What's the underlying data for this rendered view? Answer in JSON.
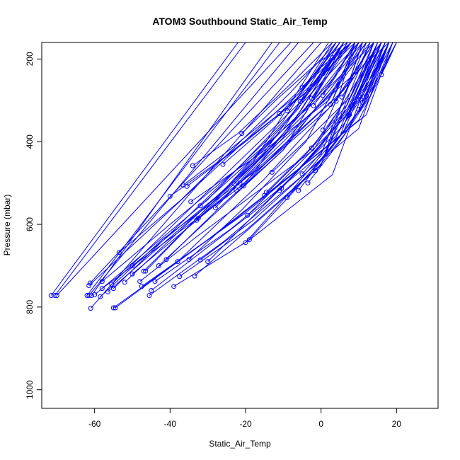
{
  "chart_data": {
    "type": "line",
    "title": "ATOM3 Southbound Static_Air_Temp",
    "xlabel": "Static_Air_Temp",
    "ylabel": "Pressure (mbar)",
    "xlim": [
      -74,
      31
    ],
    "ylim": [
      1045,
      160
    ],
    "y_reversed": true,
    "grid": false,
    "line_color": "#0000ff",
    "marker": "open-circle",
    "x_ticks": [
      -60,
      -40,
      -20,
      0,
      20
    ],
    "y_ticks": [
      200,
      400,
      600,
      800,
      1000
    ],
    "series": [
      {
        "x": [
          -71.5,
          -22
        ],
        "y": [
          772,
          160
        ]
      },
      {
        "x": [
          -70.5,
          -20
        ],
        "y": [
          772,
          160
        ]
      },
      {
        "x": [
          -70.0,
          -8
        ],
        "y": [
          772,
          160
        ]
      },
      {
        "x": [
          -62.0,
          -11
        ],
        "y": [
          772,
          160
        ]
      },
      {
        "x": [
          -61.5,
          -6
        ],
        "y": [
          772,
          160
        ]
      },
      {
        "x": [
          -60.8,
          -13
        ],
        "y": [
          772,
          160
        ]
      },
      {
        "x": [
          -61.0,
          0
        ],
        "y": [
          803,
          160
        ]
      },
      {
        "x": [
          -61.5,
          8
        ],
        "y": [
          748,
          160
        ]
      },
      {
        "x": [
          -61.2,
          -2
        ],
        "y": [
          742,
          160
        ]
      },
      {
        "x": [
          -58.5,
          -42,
          -15,
          2,
          16
        ],
        "y": [
          775,
          636,
          455,
          320,
          160
        ]
      },
      {
        "x": [
          -58.0,
          -40,
          -20,
          -3,
          14
        ],
        "y": [
          738,
          600,
          450,
          315,
          160
        ]
      },
      {
        "x": [
          -56.5,
          -14,
          18
        ],
        "y": [
          763,
          425,
          160
        ]
      },
      {
        "x": [
          -55.5,
          -5,
          8
        ],
        "y": [
          745,
          300,
          160
        ]
      },
      {
        "x": [
          -55.0,
          -12,
          10
        ],
        "y": [
          755,
          375,
          160
        ]
      },
      {
        "x": [
          -53.5,
          -37,
          -8,
          4
        ],
        "y": [
          668,
          540,
          280,
          160
        ]
      },
      {
        "x": [
          -55.0,
          -20,
          10,
          20
        ],
        "y": [
          802,
          572,
          348,
          160
        ]
      },
      {
        "x": [
          -54.5,
          -23,
          12,
          19
        ],
        "y": [
          802,
          590,
          335,
          160
        ]
      },
      {
        "x": [
          -47.0,
          -36,
          -15,
          6
        ],
        "y": [
          713,
          613,
          425,
          160
        ]
      },
      {
        "x": [
          -46.5,
          -35,
          -10,
          4
        ],
        "y": [
          713,
          605,
          370,
          160
        ]
      },
      {
        "x": [
          -48.0,
          -33,
          -2,
          16
        ],
        "y": [
          738,
          630,
          420,
          160
        ]
      },
      {
        "x": [
          -47.5,
          -30,
          5,
          14
        ],
        "y": [
          750,
          637,
          388,
          160
        ]
      },
      {
        "x": [
          -45.5,
          -26,
          10,
          18
        ],
        "y": [
          772,
          643,
          368,
          160
        ]
      },
      {
        "x": [
          -44.0,
          -24,
          0,
          12
        ],
        "y": [
          738,
          612,
          430,
          160
        ]
      },
      {
        "x": [
          -41.0,
          -27,
          -10,
          7
        ],
        "y": [
          685,
          560,
          420,
          160
        ]
      },
      {
        "x": [
          -39.0,
          -19,
          3,
          16
        ],
        "y": [
          750,
          638,
          480,
          160
        ]
      },
      {
        "x": [
          -37.5,
          -20,
          0,
          13
        ],
        "y": [
          726,
          615,
          455,
          160
        ]
      },
      {
        "x": [
          -35.0,
          -21,
          -4,
          10
        ],
        "y": [
          685,
          565,
          400,
          160
        ]
      },
      {
        "x": [
          -33.5,
          -20,
          0,
          11
        ],
        "y": [
          725,
          618,
          457,
          160
        ]
      },
      {
        "x": [
          -32.0,
          -18,
          1,
          14
        ],
        "y": [
          686,
          590,
          434,
          160
        ]
      },
      {
        "x": [
          -40.0,
          -26,
          -4,
          6
        ],
        "y": [
          532,
          440,
          282,
          160
        ]
      },
      {
        "x": [
          -36.5,
          -24,
          -6,
          5
        ],
        "y": [
          505,
          418,
          285,
          160
        ]
      },
      {
        "x": [
          -35.5,
          -20,
          -2,
          8
        ],
        "y": [
          508,
          400,
          265,
          160
        ]
      },
      {
        "x": [
          -34.0,
          -22,
          -8,
          3
        ],
        "y": [
          458,
          380,
          260,
          160
        ]
      },
      {
        "x": [
          -34.5,
          -16,
          2,
          11
        ],
        "y": [
          545,
          428,
          300,
          160
        ]
      },
      {
        "x": [
          -32.0,
          -18,
          -2,
          10
        ],
        "y": [
          555,
          440,
          300,
          160
        ]
      },
      {
        "x": [
          -32.5,
          -15,
          3,
          9
        ],
        "y": [
          585,
          450,
          300,
          160
        ]
      },
      {
        "x": [
          -33.0,
          -20,
          -4,
          6
        ],
        "y": [
          590,
          475,
          330,
          160
        ]
      },
      {
        "x": [
          -22.5,
          -8,
          6,
          14
        ],
        "y": [
          517,
          395,
          275,
          160
        ]
      },
      {
        "x": [
          -21.5,
          -10,
          4,
          13
        ],
        "y": [
          500,
          400,
          270,
          160
        ]
      },
      {
        "x": [
          -20.5,
          -8,
          4,
          12
        ],
        "y": [
          507,
          390,
          265,
          160
        ]
      },
      {
        "x": [
          -23.0,
          -12,
          2,
          11
        ],
        "y": [
          502,
          400,
          260,
          160
        ]
      },
      {
        "x": [
          -26.0,
          -14,
          0,
          9
        ],
        "y": [
          455,
          360,
          240,
          160
        ]
      },
      {
        "x": [
          -21.0,
          -12,
          -1,
          7
        ],
        "y": [
          380,
          300,
          210,
          160
        ]
      },
      {
        "x": [
          -20.0,
          -8,
          4,
          15
        ],
        "y": [
          644,
          520,
          390,
          160
        ]
      },
      {
        "x": [
          -19.0,
          -6,
          6,
          16
        ],
        "y": [
          637,
          508,
          375,
          160
        ]
      },
      {
        "x": [
          -19.5,
          -6,
          7,
          17
        ],
        "y": [
          578,
          455,
          335,
          160
        ]
      },
      {
        "x": [
          -15.0,
          -4,
          7,
          15
        ],
        "y": [
          530,
          430,
          320,
          160
        ]
      },
      {
        "x": [
          -14.5,
          -3,
          7,
          14
        ],
        "y": [
          522,
          418,
          310,
          160
        ]
      },
      {
        "x": [
          -13.0,
          -2,
          8,
          15
        ],
        "y": [
          474,
          380,
          290,
          160
        ]
      },
      {
        "x": [
          -11.0,
          0,
          9,
          16
        ],
        "y": [
          518,
          410,
          300,
          160
        ]
      },
      {
        "x": [
          -10.5,
          0,
          9,
          16
        ],
        "y": [
          513,
          405,
          295,
          160
        ]
      },
      {
        "x": [
          -9.0,
          2,
          11,
          17
        ],
        "y": [
          535,
          425,
          315,
          160
        ]
      },
      {
        "x": [
          -6.0,
          3,
          12,
          18
        ],
        "y": [
          518,
          410,
          300,
          160
        ]
      },
      {
        "x": [
          -3.5,
          5,
          13,
          19
        ],
        "y": [
          500,
          400,
          290,
          160
        ]
      },
      {
        "x": [
          -5.0,
          4,
          11,
          17
        ],
        "y": [
          478,
          385,
          290,
          160
        ]
      },
      {
        "x": [
          -1.5,
          6,
          13,
          20
        ],
        "y": [
          470,
          385,
          280,
          160
        ]
      },
      {
        "x": [
          -2.5,
          5,
          11
        ],
        "y": [
          415,
          320,
          160
        ]
      },
      {
        "x": [
          -11.0,
          -4,
          4
        ],
        "y": [
          332,
          265,
          160
        ]
      },
      {
        "x": [
          -9.0,
          -3,
          5
        ],
        "y": [
          325,
          255,
          160
        ]
      },
      {
        "x": [
          -5.5,
          0,
          6
        ],
        "y": [
          303,
          240,
          160
        ]
      },
      {
        "x": [
          -2.5,
          2,
          7
        ],
        "y": [
          295,
          230,
          160
        ]
      },
      {
        "x": [
          -2.0,
          3,
          9
        ],
        "y": [
          313,
          250,
          160
        ]
      },
      {
        "x": [
          -5.0,
          0,
          8
        ],
        "y": [
          268,
          220,
          160
        ]
      },
      {
        "x": [
          0.5,
          4,
          9
        ],
        "y": [
          288,
          240,
          160
        ]
      },
      {
        "x": [
          0.5,
          5,
          9
        ],
        "y": [
          372,
          280,
          160
        ]
      },
      {
        "x": [
          0.5,
          6
        ],
        "y": [
          235,
          160
        ]
      },
      {
        "x": [
          2.5,
          5,
          10
        ],
        "y": [
          310,
          260,
          160
        ]
      },
      {
        "x": [
          3.0,
          6
        ],
        "y": [
          197,
          160
        ]
      },
      {
        "x": [
          4.0,
          8,
          11
        ],
        "y": [
          302,
          240,
          160
        ]
      },
      {
        "x": [
          5.5,
          9,
          13
        ],
        "y": [
          292,
          240,
          160
        ]
      },
      {
        "x": [
          7.0,
          11,
          15
        ],
        "y": [
          338,
          260,
          160
        ]
      },
      {
        "x": [
          7.5,
          11,
          15
        ],
        "y": [
          335,
          255,
          160
        ]
      },
      {
        "x": [
          10.0,
          13,
          17
        ],
        "y": [
          322,
          260,
          160
        ]
      },
      {
        "x": [
          10.5,
          14,
          18
        ],
        "y": [
          297,
          240,
          160
        ]
      },
      {
        "x": [
          11.0,
          14,
          18
        ],
        "y": [
          305,
          245,
          160
        ]
      },
      {
        "x": [
          10.0,
          14,
          18
        ],
        "y": [
          290,
          235,
          160
        ]
      },
      {
        "x": [
          12.0,
          15,
          19
        ],
        "y": [
          290,
          230,
          160
        ]
      },
      {
        "x": [
          16.0,
          18,
          20
        ],
        "y": [
          238,
          200,
          160
        ]
      },
      {
        "x": [
          -58.0,
          -20,
          -5,
          6
        ],
        "y": [
          755,
          500,
          320,
          160
        ]
      },
      {
        "x": [
          -60.0,
          -30,
          -10,
          3
        ],
        "y": [
          770,
          540,
          350,
          160
        ]
      },
      {
        "x": [
          -52.0,
          -18,
          2
        ],
        "y": [
          740,
          450,
          160
        ]
      },
      {
        "x": [
          -50.0,
          -25,
          -5,
          8
        ],
        "y": [
          720,
          530,
          330,
          160
        ]
      },
      {
        "x": [
          -43.0,
          -10,
          12
        ],
        "y": [
          700,
          420,
          160
        ]
      },
      {
        "x": [
          -38.0,
          -15,
          3,
          14
        ],
        "y": [
          690,
          490,
          310,
          160
        ]
      },
      {
        "x": [
          -30.0,
          -6,
          10,
          18
        ],
        "y": [
          690,
          470,
          300,
          160
        ]
      },
      {
        "x": [
          -28.0,
          -10,
          6
        ],
        "y": [
          560,
          390,
          160
        ]
      },
      {
        "x": [
          -45.0,
          -15,
          6,
          17
        ],
        "y": [
          760,
          550,
          360,
          160
        ]
      },
      {
        "x": [
          -50.0,
          -26,
          -6,
          5
        ],
        "y": [
          700,
          520,
          320,
          160
        ]
      }
    ]
  }
}
